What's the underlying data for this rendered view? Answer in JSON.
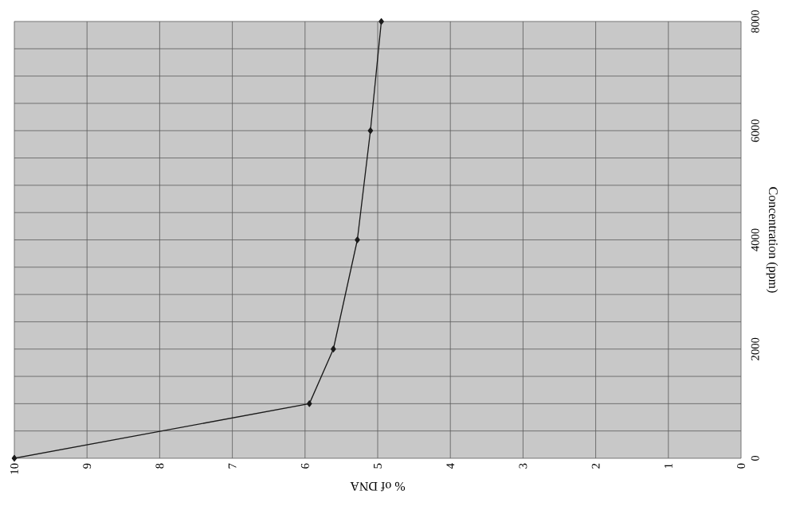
{
  "chart_data": {
    "type": "line",
    "xlabel": "% of DNA",
    "ylabel": "Concentration (ppm)",
    "x": [
      10,
      5.94,
      5.61,
      5.28,
      5.1,
      4.95
    ],
    "values": [
      0,
      1000,
      2000,
      4000,
      6000,
      8000
    ],
    "color": "#1a1a1a",
    "marker": "diamond",
    "line_style": "solid",
    "grid": true,
    "xlim": [
      10,
      0
    ],
    "ylim": [
      0,
      8000
    ],
    "xticks": [
      10,
      9,
      8,
      7,
      6,
      5,
      4,
      3,
      2,
      1,
      0
    ],
    "yticks": [
      0,
      {
        "value": 500,
        "label": null
      },
      {
        "value": 1000,
        "label": null
      },
      {
        "value": 1500,
        "label": null
      },
      2000,
      {
        "value": 2500,
        "label": null
      },
      {
        "value": 3000,
        "label": null
      },
      {
        "value": 3500,
        "label": null
      },
      4000,
      {
        "value": 4500,
        "label": null
      },
      {
        "value": 5000,
        "label": null
      },
      {
        "value": 5500,
        "label": null
      },
      6000,
      {
        "value": 6500,
        "label": null
      },
      {
        "value": 7000,
        "label": null
      },
      {
        "value": 7500,
        "label": null
      },
      8000
    ]
  }
}
